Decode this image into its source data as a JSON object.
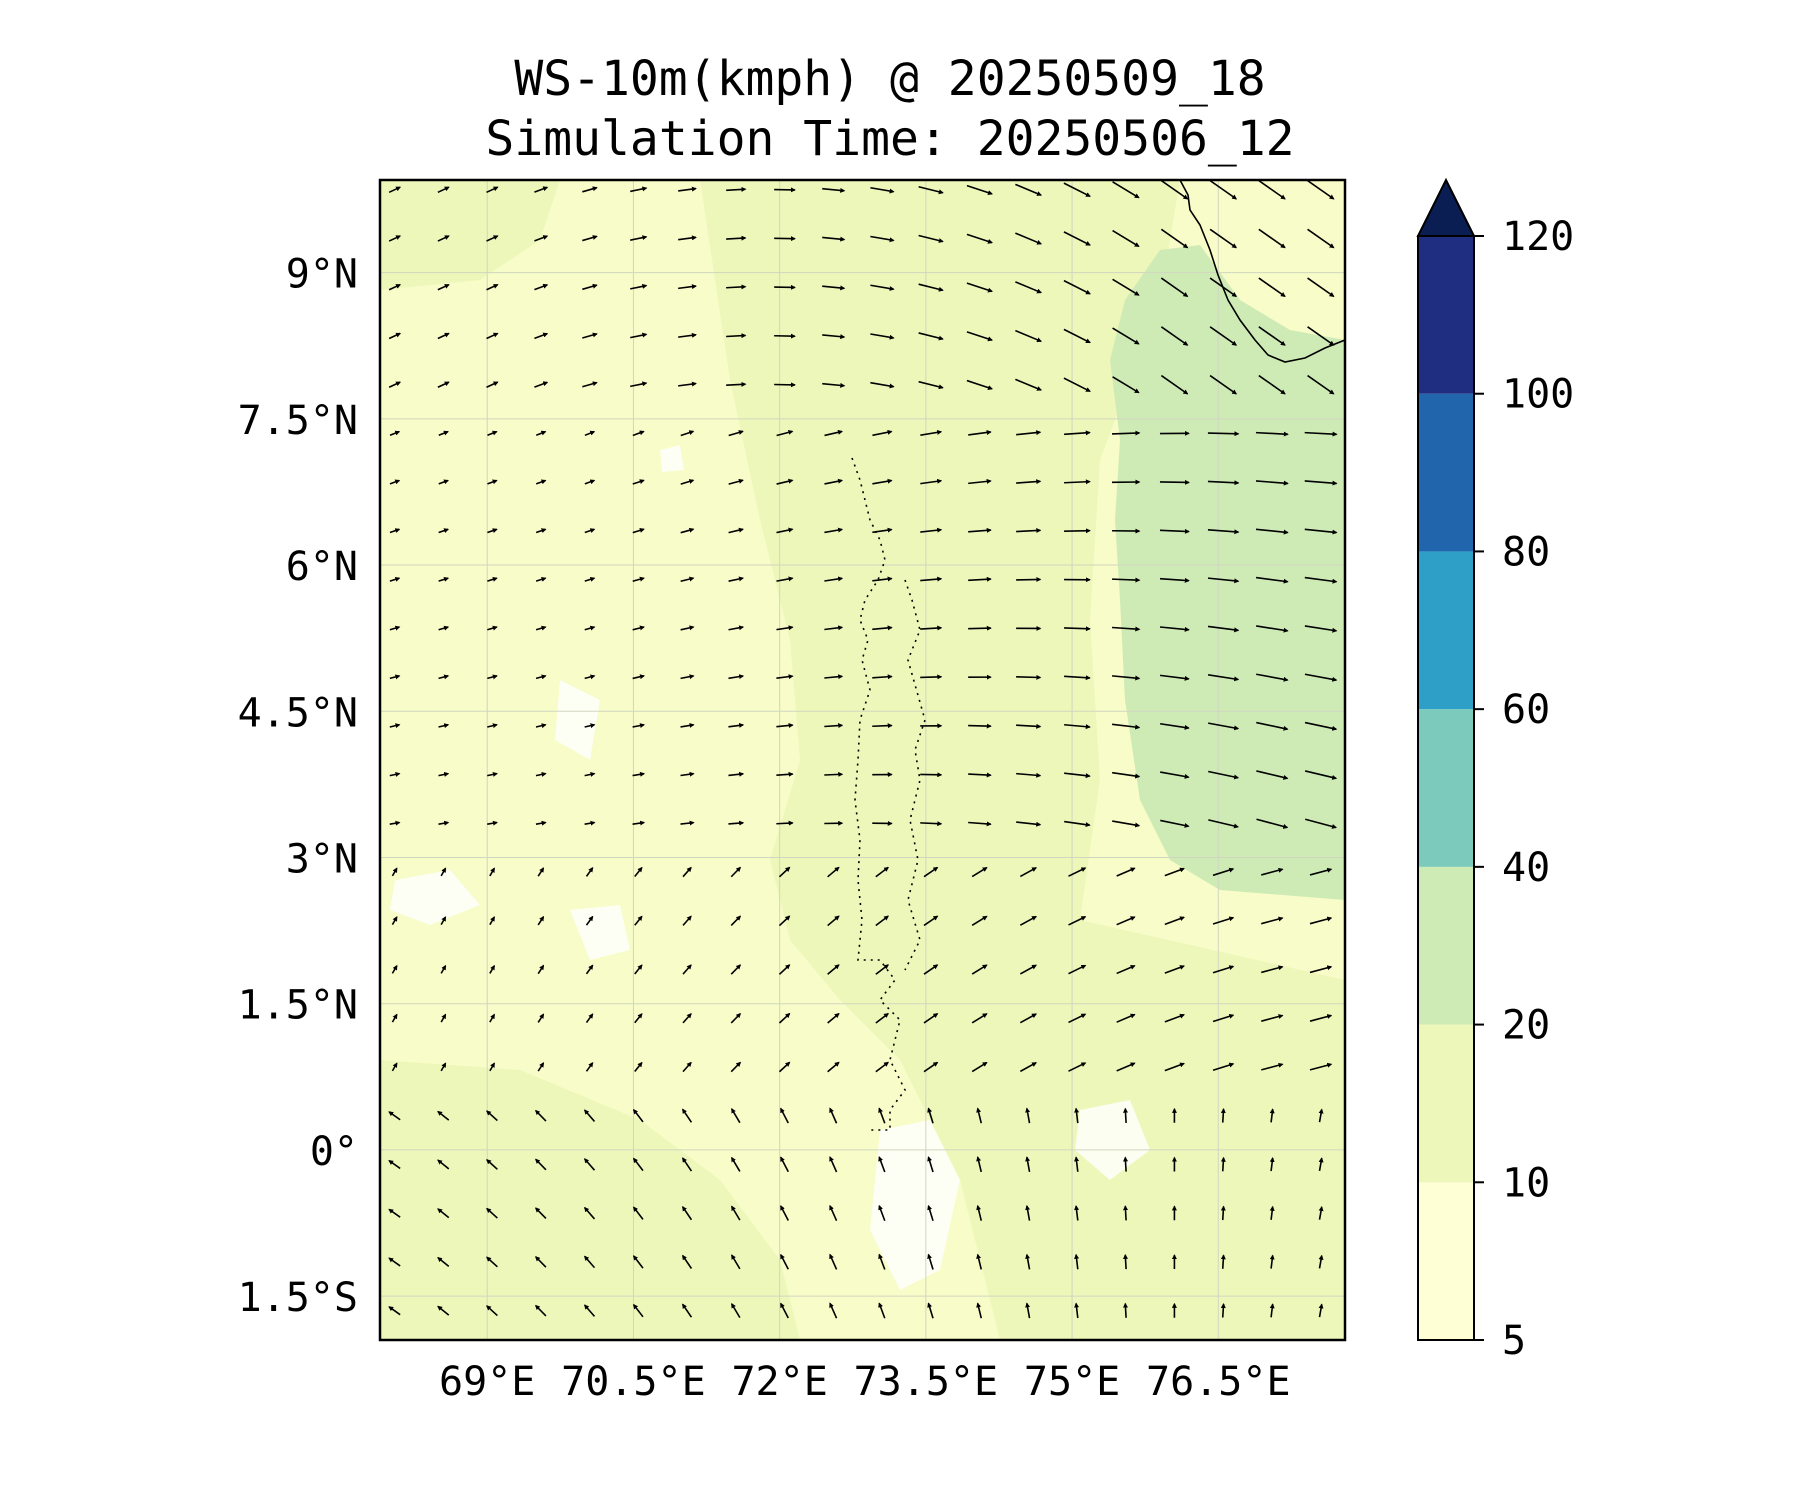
{
  "title_line1": "WS-10m(kmph) @ 20250509_18",
  "title_line2": "Simulation Time: 20250506_12",
  "map": {
    "lon_range": [
      67.9,
      77.8
    ],
    "lat_range": [
      -1.95,
      9.95
    ],
    "lat_ticks": [
      {
        "value": 9,
        "label": "9°N"
      },
      {
        "value": 7.5,
        "label": "7.5°N"
      },
      {
        "value": 6,
        "label": "6°N"
      },
      {
        "value": 4.5,
        "label": "4.5°N"
      },
      {
        "value": 3,
        "label": "3°N"
      },
      {
        "value": 1.5,
        "label": "1.5°N"
      },
      {
        "value": 0,
        "label": "0°"
      },
      {
        "value": -1.5,
        "label": "1.5°S"
      }
    ],
    "lon_ticks": [
      {
        "value": 69,
        "label": "69°E"
      },
      {
        "value": 70.5,
        "label": "70.5°E"
      },
      {
        "value": 72,
        "label": "72°E"
      },
      {
        "value": 73.5,
        "label": "73.5°E"
      },
      {
        "value": 75,
        "label": "75°E"
      },
      {
        "value": 76.5,
        "label": "76.5°E"
      }
    ],
    "gridlines": true,
    "vector_field": "10 m wind vectors (arrows)",
    "features": [
      "coastline",
      "island outlines"
    ]
  },
  "colorbar": {
    "levels": [
      5,
      10,
      20,
      40,
      60,
      80,
      100,
      120
    ],
    "tick_labels": [
      "5",
      "10",
      "20",
      "40",
      "60",
      "80",
      "100",
      "120"
    ],
    "colors": [
      "#feffd5",
      "#eef7ba",
      "#ceebb5",
      "#7bcabc",
      "#2ea0c7",
      "#2166ad",
      "#202e82",
      "#0b1e54"
    ],
    "extend": "max"
  }
}
